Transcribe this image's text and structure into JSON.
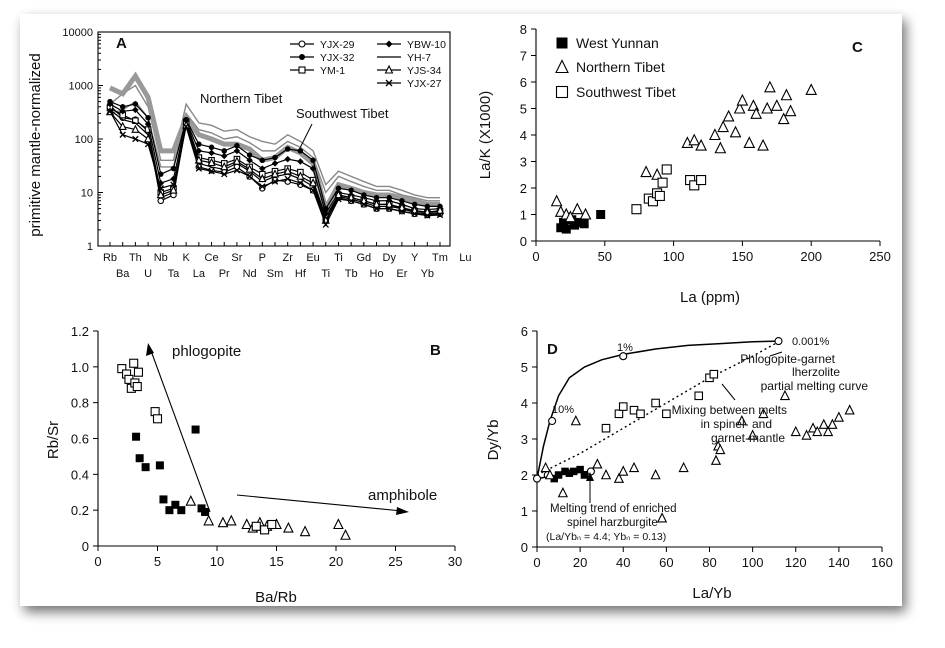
{
  "chart_data": [
    {
      "panel": "A",
      "type": "line",
      "ylabel": "primitive mantle-normalized",
      "yscale": "log",
      "ylim": [
        1,
        10000
      ],
      "ytick_labels": [
        "1",
        "10",
        "100",
        "1000",
        "10000"
      ],
      "x_labels_top": [
        "Rb",
        "Th",
        "Nb",
        "K",
        "Ce",
        "Sr",
        "P",
        "Zr",
        "Eu",
        "Ti",
        "Gd",
        "Dy",
        "Y",
        "Tm",
        "Lu"
      ],
      "x_labels_bottom": [
        "Ba",
        "U",
        "Ta",
        "La",
        "Pr",
        "Nd",
        "Sm",
        "Hf",
        "Ti",
        "Tb",
        "Ho",
        "Er",
        "Yb"
      ],
      "categories": [
        "Rb",
        "Ba",
        "Th",
        "U",
        "Nb",
        "Ta",
        "K",
        "La",
        "Ce",
        "Pr",
        "Sr",
        "Nd",
        "P",
        "Sm",
        "Zr",
        "Hf",
        "Eu",
        "Ti",
        "Gd",
        "Tb",
        "Dy",
        "Ho",
        "Y",
        "Er",
        "Tm",
        "Yb",
        "Lu"
      ],
      "annotations": [
        "Northern Tibet",
        "Southwest Tibet"
      ],
      "legend_position": "top-right",
      "series": [
        {
          "name": "YJX-29",
          "marker": "open-circle",
          "values": [
            420,
            250,
            230,
            140,
            7,
            9,
            190,
            30,
            26,
            24,
            30,
            20,
            12,
            17,
            16,
            14,
            11,
            3,
            8,
            7,
            6,
            5,
            5,
            4.5,
            4,
            3.8,
            4
          ]
        },
        {
          "name": "YJX-32",
          "marker": "filled-circle",
          "values": [
            500,
            400,
            450,
            250,
            22,
            28,
            230,
            80,
            70,
            60,
            75,
            50,
            40,
            45,
            65,
            60,
            40,
            5,
            12,
            11,
            9,
            8,
            8,
            7,
            6,
            5.5,
            5.5
          ]
        },
        {
          "name": "YM-1",
          "marker": "open-square",
          "values": [
            380,
            280,
            220,
            150,
            10,
            12,
            210,
            45,
            40,
            35,
            42,
            30,
            22,
            25,
            28,
            24,
            17,
            3.5,
            9,
            8,
            7,
            6,
            6,
            5,
            4.5,
            4.2,
            4.5
          ]
        },
        {
          "name": "YBW-10",
          "marker": "filled-diamond",
          "values": [
            450,
            330,
            350,
            190,
            15,
            18,
            220,
            60,
            55,
            48,
            60,
            40,
            28,
            35,
            42,
            38,
            28,
            4,
            10,
            9,
            8,
            7,
            7,
            6,
            5,
            4.8,
            5
          ]
        },
        {
          "name": "YH-7",
          "marker": "none",
          "values": [
            350,
            230,
            200,
            120,
            8,
            10,
            200,
            35,
            30,
            27,
            35,
            25,
            16,
            20,
            22,
            18,
            13,
            2.8,
            8.5,
            7.5,
            6.5,
            5.5,
            5.5,
            5,
            4.2,
            4,
            4.2
          ]
        },
        {
          "name": "YJS-34",
          "marker": "open-triangle",
          "values": [
            320,
            170,
            150,
            100,
            9,
            11,
            180,
            40,
            36,
            30,
            38,
            27,
            18,
            22,
            25,
            20,
            15,
            3,
            9,
            8,
            7,
            6,
            6,
            5.2,
            4.6,
            4.3,
            4.6
          ]
        },
        {
          "name": "YJX-27",
          "marker": "x",
          "values": [
            330,
            120,
            100,
            80,
            12,
            14,
            170,
            28,
            25,
            22,
            26,
            20,
            13,
            16,
            18,
            15,
            11,
            2.5,
            7.5,
            7,
            6,
            5,
            5,
            4.4,
            4,
            3.7,
            3.8
          ]
        }
      ],
      "envelopes": [
        {
          "name": "Northern Tibet",
          "color": "#888888",
          "values": [
            450,
            700,
            1000,
            400,
            40,
            40,
            450,
            200,
            180,
            140,
            150,
            110,
            90,
            80,
            120,
            90,
            60,
            14,
            25,
            20,
            16,
            13,
            13,
            11,
            9,
            8,
            8
          ]
        },
        {
          "name": "Northern Tibet",
          "color": "#888888",
          "values": [
            300,
            350,
            500,
            250,
            30,
            30,
            300,
            150,
            130,
            100,
            110,
            85,
            60,
            60,
            90,
            70,
            45,
            10,
            20,
            16,
            13,
            11,
            11,
            9,
            8,
            7,
            7
          ]
        },
        {
          "name": "Southwest Tibet",
          "color": "#999999",
          "values": [
            900,
            700,
            1500,
            600,
            60,
            60,
            250,
            120,
            100,
            80,
            80,
            65,
            40,
            45,
            70,
            55,
            35,
            5,
            14,
            12,
            10,
            9,
            9,
            8,
            7,
            6,
            6
          ]
        }
      ]
    },
    {
      "panel": "B",
      "type": "scatter",
      "xlabel": "Ba/Rb",
      "ylabel": "Rb/Sr",
      "xlim": [
        0,
        30
      ],
      "ylim": [
        0,
        1.2
      ],
      "xtick_labels": [
        "0",
        "5",
        "10",
        "15",
        "20",
        "25",
        "30"
      ],
      "ytick_labels": [
        "0",
        "0.2",
        "0.4",
        "0.6",
        "0.8",
        "1.0",
        "1.2"
      ],
      "annotations": [
        "phlogopite",
        "amphibole"
      ],
      "series": [
        {
          "name": "West Yunnan",
          "marker": "filled-square",
          "x": [
            3.2,
            3.5,
            4.0,
            5.2,
            5.5,
            6.0,
            6.5,
            7.0,
            8.2,
            8.7,
            9.0
          ],
          "y": [
            0.61,
            0.49,
            0.44,
            0.45,
            0.26,
            0.2,
            0.23,
            0.2,
            0.65,
            0.21,
            0.19
          ]
        },
        {
          "name": "Northern Tibet",
          "marker": "open-triangle",
          "x": [
            7.8,
            9.3,
            10.5,
            11.2,
            12.5,
            13.0,
            13.6,
            14.2,
            15.0,
            16.0,
            17.4,
            20.2,
            20.8
          ],
          "y": [
            0.25,
            0.14,
            0.13,
            0.14,
            0.12,
            0.1,
            0.13,
            0.11,
            0.12,
            0.1,
            0.08,
            0.12,
            0.06
          ]
        },
        {
          "name": "Southwest Tibet",
          "marker": "open-square",
          "x": [
            2.0,
            2.4,
            2.6,
            2.8,
            3.0,
            3.1,
            3.3,
            3.4,
            4.8,
            5.0,
            13.3,
            14.0,
            14.6
          ],
          "y": [
            0.99,
            0.96,
            0.93,
            0.88,
            1.02,
            0.91,
            0.89,
            0.97,
            0.75,
            0.71,
            0.11,
            0.09,
            0.12
          ]
        }
      ]
    },
    {
      "panel": "C",
      "type": "scatter",
      "xlabel": "La (ppm)",
      "ylabel": "La/K (X1000)",
      "xlim": [
        0,
        250
      ],
      "ylim": [
        0,
        8
      ],
      "xtick_labels": [
        "0",
        "50",
        "100",
        "150",
        "200",
        "250"
      ],
      "ytick_labels": [
        "0",
        "1",
        "2",
        "3",
        "4",
        "5",
        "6",
        "7",
        "8"
      ],
      "legend_position": "top-left",
      "series": [
        {
          "name": "West Yunnan",
          "marker": "filled-square",
          "x": [
            18,
            20,
            22,
            26,
            28,
            32,
            35,
            47
          ],
          "y": [
            0.5,
            0.7,
            0.45,
            0.8,
            0.6,
            0.7,
            0.65,
            1.0
          ]
        },
        {
          "name": "Northern Tibet",
          "marker": "open-triangle",
          "x": [
            15,
            18,
            22,
            25,
            30,
            36,
            80,
            88,
            110,
            115,
            120,
            130,
            134,
            136,
            140,
            145,
            148,
            150,
            155,
            158,
            160,
            165,
            168,
            170,
            175,
            180,
            182,
            185,
            200
          ],
          "y": [
            1.5,
            1.1,
            1.0,
            0.9,
            1.2,
            1.0,
            2.6,
            2.5,
            3.7,
            3.8,
            3.6,
            4.0,
            3.5,
            4.3,
            4.7,
            4.1,
            5.0,
            5.3,
            3.7,
            5.1,
            4.8,
            3.6,
            5.0,
            5.8,
            5.1,
            4.6,
            5.5,
            4.9,
            5.7
          ]
        },
        {
          "name": "Southwest Tibet",
          "marker": "open-square",
          "x": [
            73,
            82,
            85,
            88,
            90,
            92,
            95,
            112,
            115,
            120
          ],
          "y": [
            1.2,
            1.6,
            1.5,
            1.8,
            1.7,
            2.2,
            2.7,
            2.3,
            2.1,
            2.3
          ]
        }
      ]
    },
    {
      "panel": "D",
      "type": "scatter",
      "xlabel": "La/Yb",
      "ylabel": "Dy/Yb",
      "xlim": [
        0,
        160
      ],
      "ylim": [
        0,
        6
      ],
      "xtick_labels": [
        "0",
        "20",
        "40",
        "60",
        "80",
        "100",
        "120",
        "140",
        "160"
      ],
      "ytick_labels": [
        "0",
        "1",
        "2",
        "3",
        "4",
        "5",
        "6"
      ],
      "annotations": [
        "1%",
        "0.001%",
        "10%",
        "Phlogopite-garnet",
        "lherzolite",
        "partial melting curve",
        "Mixing between melts",
        "in spinel- and",
        "garnet-mantle",
        "Melting trend of enriched",
        "spinel harzburgite",
        "(La/Ybₙ = 4.4; Ybₙ = 0.13)"
      ],
      "curves": [
        {
          "name": "Phlogopite-garnet lherzolite partial melting curve",
          "style": "solid",
          "x": [
            0,
            3,
            6,
            10,
            15,
            22,
            30,
            40,
            55,
            70,
            85,
            100,
            112
          ],
          "y": [
            1.9,
            2.8,
            3.5,
            4.2,
            4.7,
            5.0,
            5.2,
            5.35,
            5.5,
            5.6,
            5.65,
            5.7,
            5.72
          ]
        },
        {
          "name": "Mixing between melts in spinel- and garnet-mantle",
          "style": "dotted",
          "x": [
            0,
            20,
            40,
            60,
            80,
            100,
            112
          ],
          "y": [
            2.0,
            2.6,
            3.3,
            4.0,
            4.7,
            5.3,
            5.7
          ]
        },
        {
          "name": "Melting trend of enriched spinel harzburgite",
          "style": "solid",
          "x": [
            0,
            5,
            10,
            15,
            20,
            25
          ],
          "y": [
            1.9,
            1.95,
            2.0,
            2.05,
            2.08,
            2.1
          ]
        }
      ],
      "curve_markers": {
        "x": [
          0,
          7,
          40,
          112,
          5,
          25
        ],
        "y": [
          1.9,
          3.5,
          5.3,
          5.72,
          2.0,
          2.1
        ]
      },
      "series": [
        {
          "name": "West Yunnan",
          "marker": "filled-square",
          "x": [
            8,
            10,
            13,
            15,
            17,
            20,
            22
          ],
          "y": [
            1.9,
            2.0,
            2.1,
            2.05,
            2.1,
            2.15,
            2.0
          ]
        },
        {
          "name": "Northern Tibet",
          "marker": "open-triangle",
          "x": [
            4,
            6,
            12,
            18,
            28,
            32,
            38,
            40,
            45,
            55,
            58,
            68,
            83,
            84,
            85,
            95,
            100,
            105,
            115,
            120,
            125,
            128,
            130,
            133,
            135,
            137,
            140,
            145
          ],
          "y": [
            2.2,
            2.0,
            1.5,
            3.5,
            2.3,
            2.0,
            1.9,
            2.1,
            2.2,
            2.0,
            0.8,
            2.2,
            2.4,
            2.8,
            2.7,
            3.5,
            3.1,
            3.7,
            4.2,
            3.2,
            3.1,
            3.3,
            3.2,
            3.4,
            3.2,
            3.4,
            3.6,
            3.8
          ]
        },
        {
          "name": "Southwest Tibet",
          "marker": "open-square",
          "x": [
            32,
            38,
            40,
            45,
            48,
            55,
            60,
            75,
            80,
            82
          ],
          "y": [
            3.3,
            3.7,
            3.9,
            3.8,
            3.7,
            4.0,
            3.7,
            4.2,
            4.7,
            4.8
          ]
        }
      ]
    }
  ]
}
